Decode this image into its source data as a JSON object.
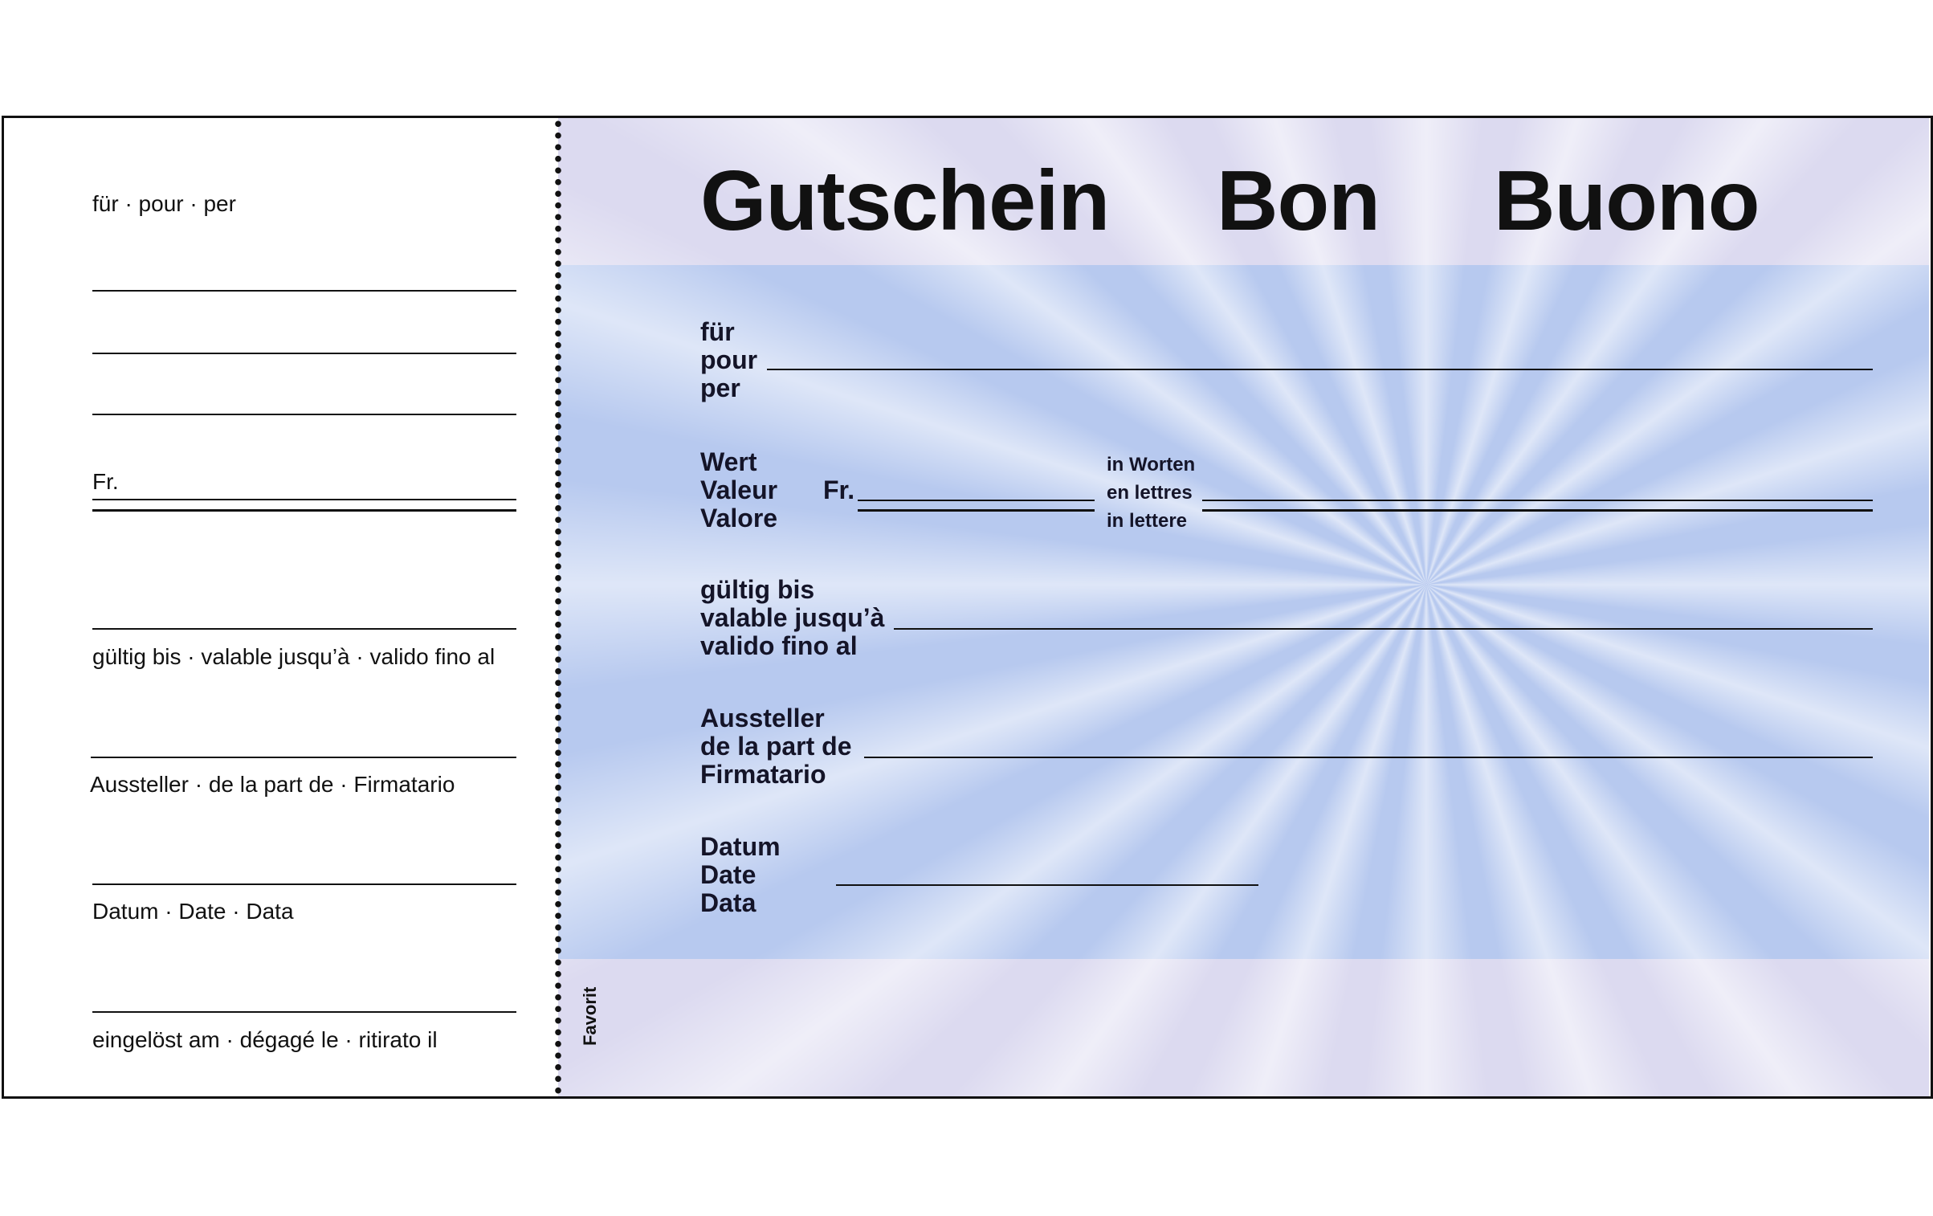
{
  "stub": {
    "for_label": "für · pour · per",
    "amount_label": "Fr.",
    "valid_label": "gültig bis · valable jusqu’à · valido fino al",
    "issuer_label": "Aussteller · de la part de · Firmatario",
    "date_label": "Datum · Date · Data",
    "redeemed_label": "eingelöst am · dégagé le · ritirato il"
  },
  "voucher": {
    "titles": [
      "Gutschein",
      "Bon",
      "Buono"
    ],
    "for_lines": [
      "für",
      "pour",
      "per"
    ],
    "value_lines": [
      "Wert",
      "Valeur",
      "Valore"
    ],
    "currency": "Fr.",
    "words_lines": [
      "in Worten",
      "en lettres",
      "in lettere"
    ],
    "valid_lines": [
      "gültig bis",
      "valable jusqu’à",
      "valido fino al"
    ],
    "issuer_lines": [
      "Aussteller",
      "de la part de",
      "Firmatario"
    ],
    "date_lines": [
      "Datum",
      "Date",
      "Data"
    ],
    "brand": "Favorit"
  },
  "colors": {
    "band": "#b7c9ef",
    "background": "#dcdaf0",
    "ink": "#111111"
  }
}
